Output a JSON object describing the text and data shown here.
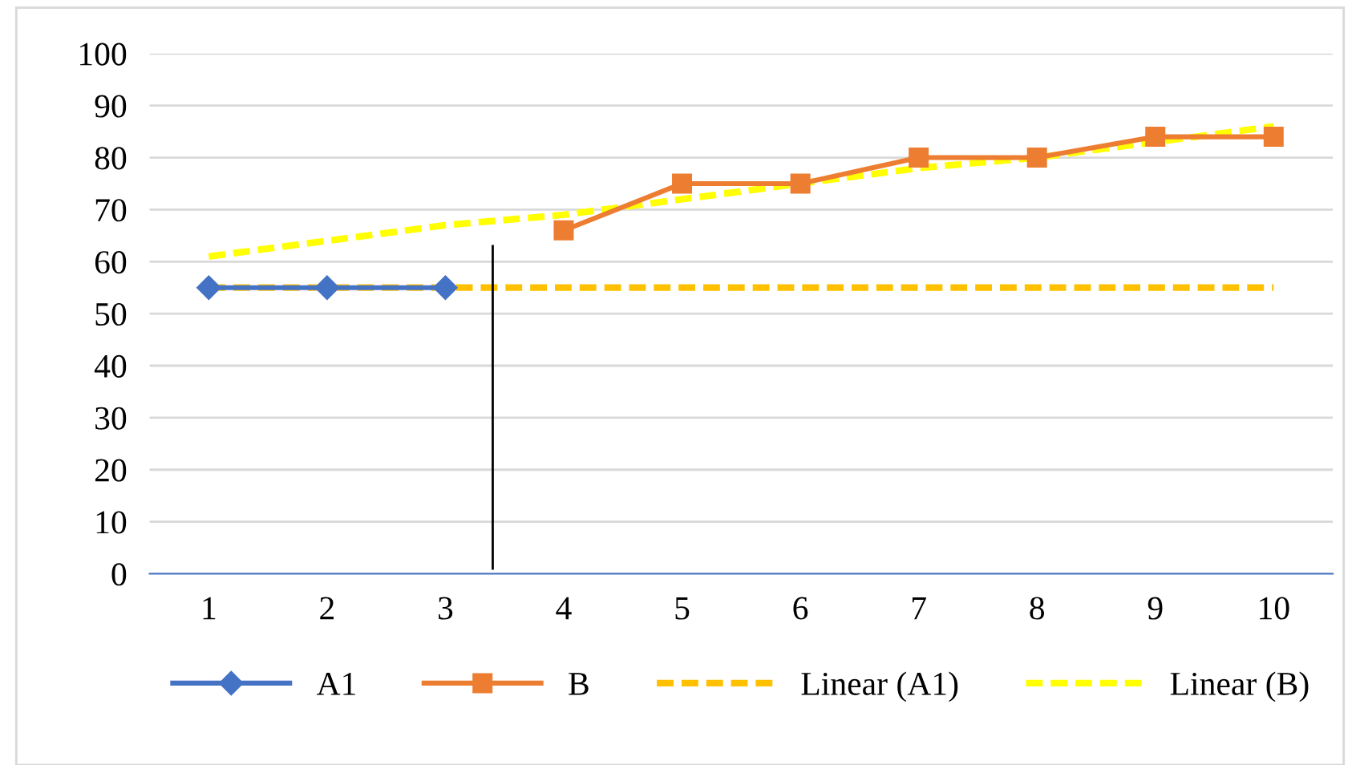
{
  "chart_data": {
    "type": "line",
    "x": [
      1,
      2,
      3,
      4,
      5,
      6,
      7,
      8,
      9,
      10
    ],
    "series": [
      {
        "name": "A1",
        "color": "#4472c4",
        "marker": "diamond",
        "line_style": "solid",
        "values": [
          55,
          55,
          55,
          null,
          null,
          null,
          null,
          null,
          null,
          null
        ]
      },
      {
        "name": "B",
        "color": "#ed7d31",
        "marker": "square",
        "line_style": "solid",
        "values": [
          null,
          null,
          null,
          66,
          75,
          75,
          80,
          80,
          84,
          84
        ]
      },
      {
        "name": "Linear (A1)",
        "color": "#ffc000",
        "marker": "none",
        "line_style": "dashed",
        "values": [
          55,
          55,
          55,
          55,
          55,
          55,
          55,
          55,
          55,
          55
        ]
      },
      {
        "name": "Linear (B)",
        "color": "#ffff00",
        "marker": "none",
        "line_style": "dashed",
        "values": [
          61,
          64,
          67,
          69,
          72,
          75,
          78,
          80,
          83,
          86
        ]
      },
      {
        "color": "#000000",
        "marker": "none",
        "line_style": "solid",
        "x": [
          3.4,
          3.4
        ],
        "values": [
          1,
          63
        ]
      }
    ],
    "xlim": [
      0.5,
      10.5
    ],
    "xticks": [
      1,
      2,
      3,
      4,
      5,
      6,
      7,
      8,
      9,
      10
    ],
    "ylim": [
      0,
      100
    ],
    "yticks": [
      0,
      10,
      20,
      30,
      40,
      50,
      60,
      70,
      80,
      90,
      100
    ],
    "grid": "y",
    "legend": "bottom"
  }
}
